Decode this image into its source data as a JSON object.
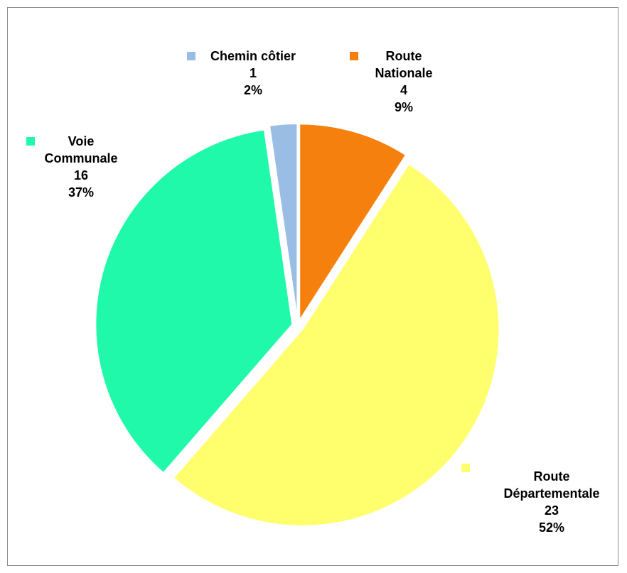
{
  "chart_data": {
    "type": "pie",
    "slices": [
      {
        "label": "Route Nationale",
        "label_lines": [
          "Route",
          "Nationale"
        ],
        "value": 4,
        "percent": "9%",
        "color": "#F5800E"
      },
      {
        "label": "Route Départementale",
        "label_lines": [
          "Route",
          "Départementale"
        ],
        "value": 23,
        "percent": "52%",
        "color": "#FFFF6E"
      },
      {
        "label": "Voie Communale",
        "label_lines": [
          "Voie",
          "Communale"
        ],
        "value": 16,
        "percent": "37%",
        "color": "#1FF9A9"
      },
      {
        "label": "Chemin côtier",
        "label_lines": [
          "Chemin côtier"
        ],
        "value": 1,
        "percent": "2%",
        "color": "#9ABDE6"
      }
    ],
    "start_angle_deg": 0,
    "direction": "clockwise",
    "exploded": true,
    "legend": "none",
    "data_labels": "outside with category, value and percent"
  }
}
